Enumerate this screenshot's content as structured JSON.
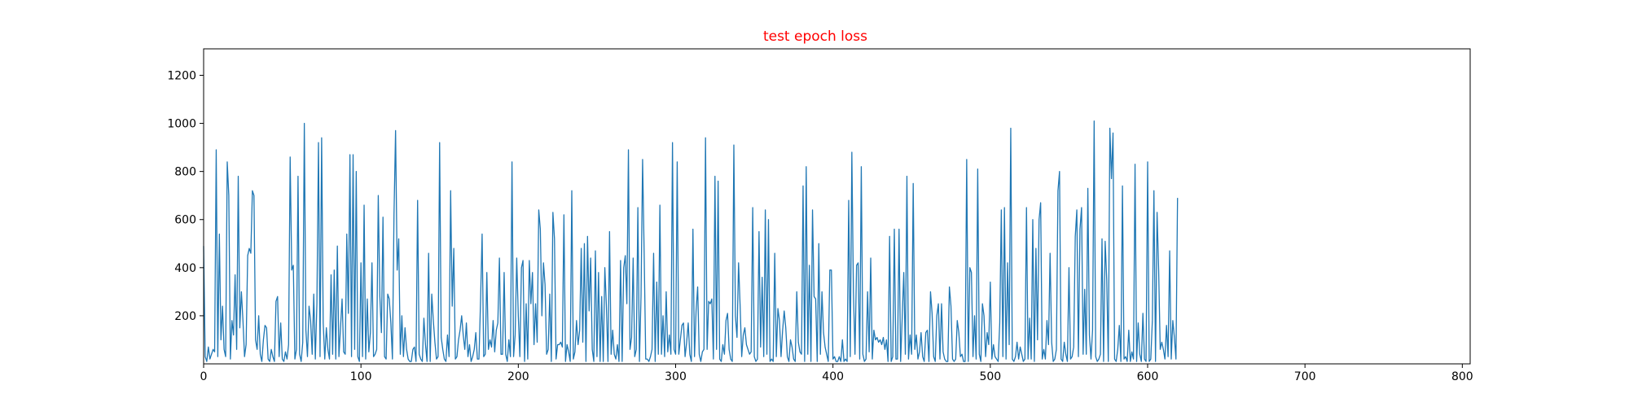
{
  "chart_data": {
    "type": "line",
    "title": "test epoch loss",
    "title_color": "#ff0000",
    "xlabel": "",
    "ylabel": "",
    "xlim": [
      0,
      805
    ],
    "ylim": [
      0,
      1310
    ],
    "x_ticks": [
      0,
      100,
      200,
      300,
      400,
      500,
      600,
      700,
      800
    ],
    "y_ticks": [
      200,
      400,
      600,
      800,
      1000,
      1200
    ],
    "grid": false,
    "legend": "none",
    "series": [
      {
        "color": "#1f77b4",
        "x_start": 0,
        "x_step": 1,
        "values": [
          490,
          30,
          10,
          70,
          20,
          40,
          60,
          50,
          890,
          30,
          540,
          100,
          240,
          60,
          30,
          840,
          700,
          20,
          180,
          120,
          370,
          60,
          780,
          150,
          300,
          180,
          30,
          80,
          450,
          480,
          460,
          720,
          700,
          100,
          60,
          200,
          40,
          10,
          100,
          160,
          150,
          20,
          10,
          60,
          30,
          10,
          260,
          280,
          30,
          170,
          20,
          10,
          50,
          20,
          80,
          860,
          390,
          410,
          20,
          60,
          780,
          40,
          10,
          90,
          1000,
          140,
          30,
          240,
          180,
          40,
          290,
          20,
          250,
          920,
          30,
          940,
          170,
          20,
          150,
          60,
          20,
          370,
          40,
          390,
          20,
          490,
          30,
          150,
          270,
          50,
          40,
          540,
          210,
          870,
          30,
          870,
          60,
          800,
          30,
          10,
          420,
          30,
          660,
          20,
          270,
          50,
          130,
          420,
          30,
          40,
          60,
          700,
          280,
          130,
          610,
          30,
          20,
          290,
          270,
          170,
          20,
          620,
          970,
          390,
          520,
          40,
          200,
          30,
          150,
          60,
          20,
          10,
          10,
          60,
          70,
          10,
          680,
          40,
          20,
          10,
          190,
          80,
          10,
          460,
          10,
          290,
          180,
          90,
          20,
          30,
          920,
          110,
          60,
          20,
          10,
          120,
          30,
          720,
          240,
          480,
          20,
          30,
          100,
          140,
          200,
          120,
          60,
          170,
          30,
          80,
          10,
          30,
          60,
          130,
          20,
          20,
          260,
          540,
          30,
          40,
          380,
          60,
          100,
          70,
          180,
          50,
          140,
          170,
          440,
          40,
          40,
          380,
          40,
          10,
          100,
          30,
          840,
          30,
          120,
          440,
          200,
          30,
          400,
          430,
          10,
          250,
          20,
          430,
          250,
          380,
          80,
          250,
          90,
          640,
          560,
          200,
          420,
          330,
          40,
          60,
          290,
          10,
          630,
          520,
          20,
          80,
          80,
          90,
          70,
          620,
          10,
          80,
          50,
          10,
          720,
          20,
          50,
          180,
          80,
          140,
          480,
          90,
          500,
          10,
          530,
          220,
          440,
          60,
          10,
          470,
          30,
          380,
          10,
          280,
          10,
          400,
          240,
          10,
          550,
          40,
          140,
          40,
          20,
          80,
          10,
          430,
          10,
          400,
          450,
          250,
          890,
          60,
          110,
          440,
          30,
          60,
          650,
          10,
          280,
          850,
          460,
          20,
          20,
          10,
          30,
          60,
          460,
          10,
          340,
          40,
          660,
          40,
          200,
          30,
          300,
          50,
          120,
          40,
          920,
          60,
          40,
          840,
          40,
          100,
          160,
          170,
          30,
          90,
          170,
          40,
          10,
          560,
          30,
          220,
          320,
          40,
          10,
          50,
          60,
          940,
          60,
          260,
          250,
          270,
          20,
          780,
          60,
          760,
          20,
          10,
          80,
          40,
          180,
          210,
          60,
          20,
          10,
          910,
          200,
          110,
          420,
          240,
          30,
          120,
          150,
          80,
          60,
          40,
          50,
          650,
          30,
          10,
          20,
          550,
          70,
          360,
          30,
          640,
          40,
          600,
          10,
          20,
          10,
          460,
          30,
          230,
          180,
          30,
          140,
          220,
          150,
          30,
          10,
          100,
          70,
          20,
          10,
          300,
          90,
          50,
          40,
          740,
          10,
          820,
          40,
          410,
          10,
          640,
          280,
          270,
          10,
          500,
          40,
          300,
          130,
          70,
          40,
          10,
          390,
          390,
          20,
          30,
          10,
          10,
          30,
          10,
          100,
          10,
          20,
          10,
          680,
          30,
          880,
          300,
          40,
          410,
          420,
          20,
          820,
          40,
          10,
          20,
          300,
          50,
          440,
          20,
          140,
          100,
          110,
          90,
          100,
          80,
          110,
          60,
          100,
          10,
          530,
          10,
          30,
          560,
          20,
          20,
          560,
          10,
          190,
          380,
          40,
          780,
          20,
          120,
          40,
          750,
          60,
          120,
          20,
          50,
          130,
          30,
          10,
          130,
          140,
          10,
          300,
          210,
          30,
          10,
          200,
          250,
          20,
          250,
          50,
          20,
          10,
          10,
          320,
          240,
          20,
          10,
          20,
          180,
          130,
          30,
          40,
          10,
          10,
          850,
          10,
          400,
          380,
          30,
          200,
          20,
          810,
          40,
          10,
          250,
          200,
          30,
          130,
          80,
          340,
          20,
          80,
          30,
          20,
          10,
          170,
          640,
          30,
          650,
          20,
          420,
          80,
          980,
          20,
          10,
          30,
          90,
          20,
          70,
          40,
          10,
          20,
          650,
          20,
          190,
          20,
          600,
          10,
          480,
          100,
          600,
          670,
          20,
          60,
          20,
          180,
          80,
          460,
          90,
          10,
          20,
          60,
          720,
          800,
          20,
          10,
          90,
          40,
          10,
          400,
          20,
          30,
          70,
          530,
          640,
          30,
          560,
          650,
          40,
          310,
          40,
          730,
          120,
          20,
          140,
          1010,
          30,
          10,
          20,
          40,
          520,
          10,
          510,
          350,
          10,
          980,
          770,
          960,
          20,
          10,
          60,
          160,
          10,
          740,
          20,
          30,
          10,
          140,
          10,
          50,
          20,
          830,
          10,
          170,
          40,
          10,
          210,
          20,
          10,
          840,
          10,
          20,
          180,
          720,
          10,
          630,
          390,
          60,
          90,
          60,
          20,
          160,
          30,
          470,
          20,
          180,
          110,
          20,
          690
        ]
      }
    ]
  }
}
